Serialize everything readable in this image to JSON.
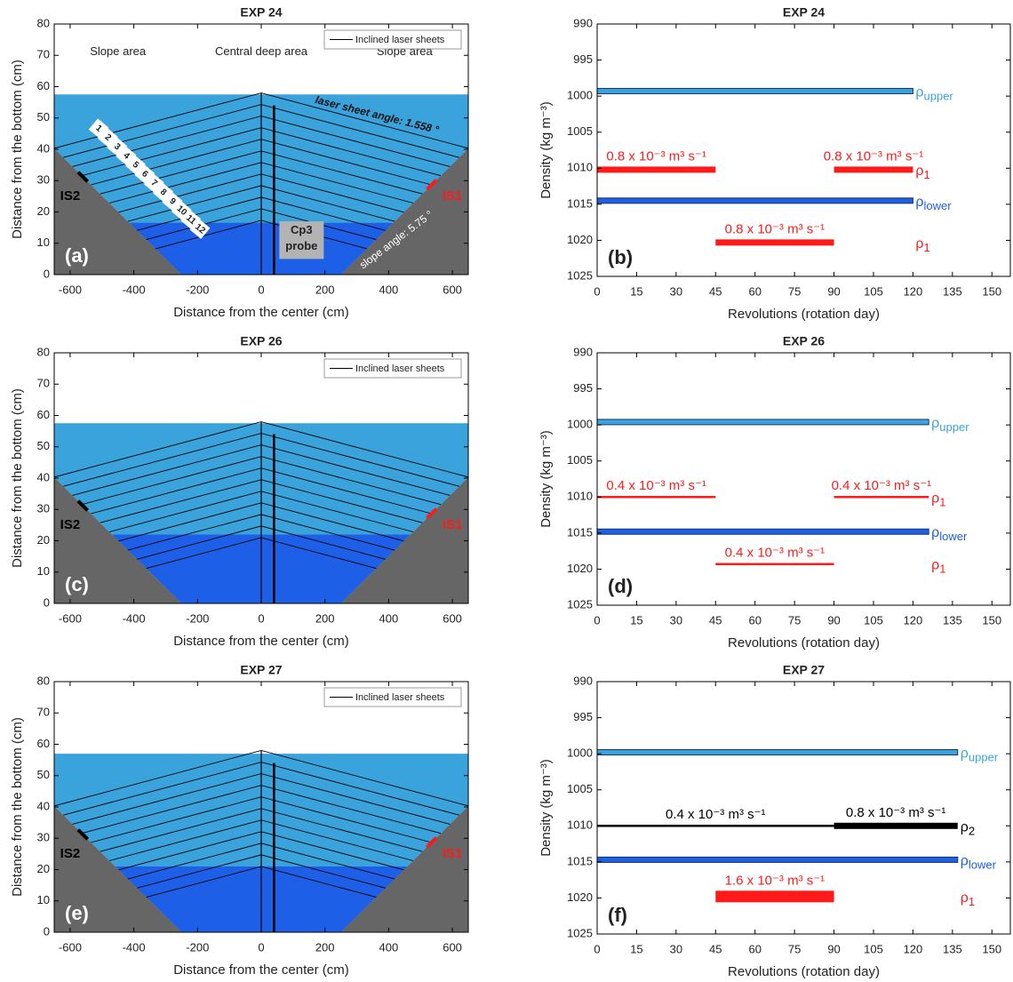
{
  "chart_data": [
    {
      "type": "section",
      "title": "EXP 24",
      "panel_label": "(a)",
      "xlabel": "Distance from the center (cm)",
      "ylabel": "Distance from the bottom (cm)",
      "xlim": [
        -650,
        650
      ],
      "ylim": [
        0,
        80
      ],
      "xticks": [
        -600,
        -400,
        -200,
        0,
        200,
        400,
        600
      ],
      "yticks": [
        0,
        10,
        20,
        30,
        40,
        50,
        60,
        70,
        80
      ],
      "legend": "Inclined laser sheets",
      "surface": 57.5,
      "interface": 16.5,
      "slope_foot": 250,
      "slope_angle": 5.75,
      "sheet_angle": 1.558,
      "sheet_tops": [
        58,
        54.3,
        50.6,
        46.9,
        43.2,
        39.5,
        35.8,
        32.1,
        28.4,
        24.7,
        21,
        17.3
      ],
      "sheet_labels": [
        "1",
        "2",
        "3",
        "4",
        "5",
        "6",
        "7",
        "8",
        "9",
        "10",
        "11",
        "12"
      ],
      "probe": {
        "x": 40,
        "y": [
          0,
          54
        ]
      },
      "probe_label": [
        "Cp3",
        "probe"
      ],
      "sensors": [
        {
          "name": "IS2",
          "color": "#000000",
          "x": [
            -575,
            -545
          ]
        },
        {
          "name": "IS1",
          "color": "#ff1a1a",
          "x": [
            520,
            550
          ]
        }
      ],
      "colors": {
        "upper": "#3aa3dc",
        "lower": "#1d5fe6",
        "ground": "#666666"
      },
      "annotations": [
        "Slope area",
        "Central deep area",
        "Slope area",
        "laser sheet angle: 1.558 °",
        "slope angle: 5.75 °"
      ]
    },
    {
      "type": "timeline",
      "title": "EXP 24",
      "panel_label": "(b)",
      "xlabel": "Revolutions (rotation day)",
      "ylabel": "Density (kg m⁻³)",
      "xlim": [
        0,
        157
      ],
      "ylim": [
        1025,
        990
      ],
      "xticks": [
        0,
        15,
        30,
        45,
        60,
        75,
        90,
        105,
        120,
        135,
        150
      ],
      "yticks": [
        990,
        995,
        1000,
        1005,
        1010,
        1015,
        1020,
        1025
      ],
      "series": [
        {
          "name": "ρ",
          "sub": "upper",
          "color": "#3aa3dc",
          "segments": [
            {
              "x": [
                0,
                120
              ],
              "value": 999.3,
              "weight": "band"
            }
          ]
        },
        {
          "name": "ρ",
          "sub": "1",
          "color": "#ff1a1a",
          "segments": [
            {
              "x": [
                0,
                45
              ],
              "value": 1010.2,
              "weight": "thick",
              "label": "0.8 x 10⁻³ m³ s⁻¹"
            },
            {
              "x": [
                90,
                120
              ],
              "value": 1010.2,
              "weight": "thick",
              "label": "0.8 x 10⁻³ m³ s⁻¹"
            }
          ]
        },
        {
          "name": "ρ",
          "sub": "lower",
          "color": "#1d5fe6",
          "segments": [
            {
              "x": [
                0,
                120
              ],
              "value": 1014.5,
              "weight": "band"
            }
          ]
        },
        {
          "name": "ρ",
          "sub": "1",
          "color": "#ff1a1a",
          "segments": [
            {
              "x": [
                45,
                90
              ],
              "value": 1020.3,
              "weight": "thick",
              "label": "0.8 x 10⁻³ m³ s⁻¹"
            }
          ]
        }
      ]
    },
    {
      "type": "section",
      "title": "EXP 26",
      "panel_label": "(c)",
      "xlabel": "Distance from the center (cm)",
      "ylabel": "Distance from the bottom (cm)",
      "xlim": [
        -650,
        650
      ],
      "ylim": [
        0,
        80
      ],
      "xticks": [
        -600,
        -400,
        -200,
        0,
        200,
        400,
        600
      ],
      "yticks": [
        0,
        10,
        20,
        30,
        40,
        50,
        60,
        70,
        80
      ],
      "legend": "Inclined laser sheets",
      "surface": 57.5,
      "interface": 22,
      "slope_foot": 250,
      "slope_angle": 5.75,
      "sheet_angle": 1.558,
      "sheet_tops": [
        58,
        54.3,
        50.6,
        46.9,
        43.2,
        39.5,
        35.8,
        32.1,
        28.4,
        24.7,
        21
      ],
      "probe": {
        "x": 40,
        "y": [
          0,
          54
        ]
      },
      "sensors": [
        {
          "name": "IS2",
          "color": "#000000",
          "x": [
            -575,
            -545
          ]
        },
        {
          "name": "IS1",
          "color": "#ff1a1a",
          "x": [
            520,
            550
          ]
        }
      ],
      "colors": {
        "upper": "#3aa3dc",
        "lower": "#1d5fe6",
        "ground": "#666666"
      }
    },
    {
      "type": "timeline",
      "title": "EXP 26",
      "panel_label": "(d)",
      "xlabel": "Revolutions (rotation day)",
      "ylabel": "Density (kg m⁻³)",
      "xlim": [
        0,
        157
      ],
      "ylim": [
        1025,
        990
      ],
      "xticks": [
        0,
        15,
        30,
        45,
        60,
        75,
        90,
        105,
        120,
        135,
        150
      ],
      "yticks": [
        990,
        995,
        1000,
        1005,
        1010,
        1015,
        1020,
        1025
      ],
      "series": [
        {
          "name": "ρ",
          "sub": "upper",
          "color": "#3aa3dc",
          "segments": [
            {
              "x": [
                0,
                126
              ],
              "value": 999.6,
              "weight": "band"
            }
          ]
        },
        {
          "name": "ρ",
          "sub": "1",
          "color": "#ff1a1a",
          "segments": [
            {
              "x": [
                0,
                45
              ],
              "value": 1010,
              "weight": "thin",
              "label": "0.4 x 10⁻³ m³ s⁻¹"
            },
            {
              "x": [
                90,
                126
              ],
              "value": 1010,
              "weight": "thin",
              "label": "0.4 x 10⁻³ m³ s⁻¹"
            }
          ]
        },
        {
          "name": "ρ",
          "sub": "lower",
          "color": "#1d5fe6",
          "segments": [
            {
              "x": [
                0,
                126
              ],
              "value": 1014.8,
              "weight": "band"
            }
          ]
        },
        {
          "name": "ρ",
          "sub": "1",
          "color": "#ff1a1a",
          "segments": [
            {
              "x": [
                45,
                90
              ],
              "value": 1019.3,
              "weight": "thin",
              "label": "0.4 x 10⁻³ m³ s⁻¹"
            }
          ]
        }
      ]
    },
    {
      "type": "section",
      "title": "EXP 27",
      "panel_label": "(e)",
      "xlabel": "Distance from the center (cm)",
      "ylabel": "Distance from the bottom (cm)",
      "xlim": [
        -650,
        650
      ],
      "ylim": [
        0,
        80
      ],
      "xticks": [
        -600,
        -400,
        -200,
        0,
        200,
        400,
        600
      ],
      "yticks": [
        0,
        10,
        20,
        30,
        40,
        50,
        60,
        70,
        80
      ],
      "legend": "Inclined laser sheets",
      "surface": 57,
      "interface": 21,
      "slope_foot": 250,
      "slope_angle": 5.75,
      "sheet_angle": 1.558,
      "sheet_tops": [
        58,
        54.3,
        50.6,
        46.9,
        43.2,
        39.5,
        35.8,
        32.1,
        28.4,
        24.7,
        21
      ],
      "probe": {
        "x": 40,
        "y": [
          0,
          54
        ]
      },
      "sensors": [
        {
          "name": "IS2",
          "color": "#000000",
          "x": [
            -575,
            -545
          ]
        },
        {
          "name": "IS1",
          "color": "#ff1a1a",
          "x": [
            520,
            550
          ]
        }
      ],
      "colors": {
        "upper": "#3aa3dc",
        "lower": "#1d5fe6",
        "ground": "#666666"
      }
    },
    {
      "type": "timeline",
      "title": "EXP 27",
      "panel_label": "(f)",
      "xlabel": "Revolutions (rotation day)",
      "ylabel": "Density (kg m⁻³)",
      "xlim": [
        0,
        157
      ],
      "ylim": [
        1025,
        990
      ],
      "xticks": [
        0,
        15,
        30,
        45,
        60,
        75,
        90,
        105,
        120,
        135,
        150
      ],
      "yticks": [
        990,
        995,
        1000,
        1005,
        1010,
        1015,
        1020,
        1025
      ],
      "series": [
        {
          "name": "ρ",
          "sub": "upper",
          "color": "#3aa3dc",
          "segments": [
            {
              "x": [
                0,
                137
              ],
              "value": 999.8,
              "weight": "band"
            }
          ]
        },
        {
          "name": "ρ",
          "sub": "2",
          "color": "#000000",
          "segments": [
            {
              "x": [
                0,
                90
              ],
              "value": 1010,
              "weight": "thin",
              "label": "0.4 x 10⁻³ m³ s⁻¹"
            },
            {
              "x": [
                90,
                137
              ],
              "value": 1010,
              "weight": "thick",
              "label": "0.8 x 10⁻³ m³ s⁻¹"
            }
          ]
        },
        {
          "name": "ρ",
          "sub": "lower",
          "color": "#1d5fe6",
          "segments": [
            {
              "x": [
                0,
                137
              ],
              "value": 1014.7,
              "weight": "band"
            }
          ]
        },
        {
          "name": "ρ",
          "sub": "1",
          "color": "#ff1a1a",
          "segments": [
            {
              "x": [
                45,
                90
              ],
              "value": 1019.8,
              "weight": "heavy",
              "label": "1.6 x 10⁻³ m³ s⁻¹"
            }
          ]
        }
      ]
    }
  ]
}
